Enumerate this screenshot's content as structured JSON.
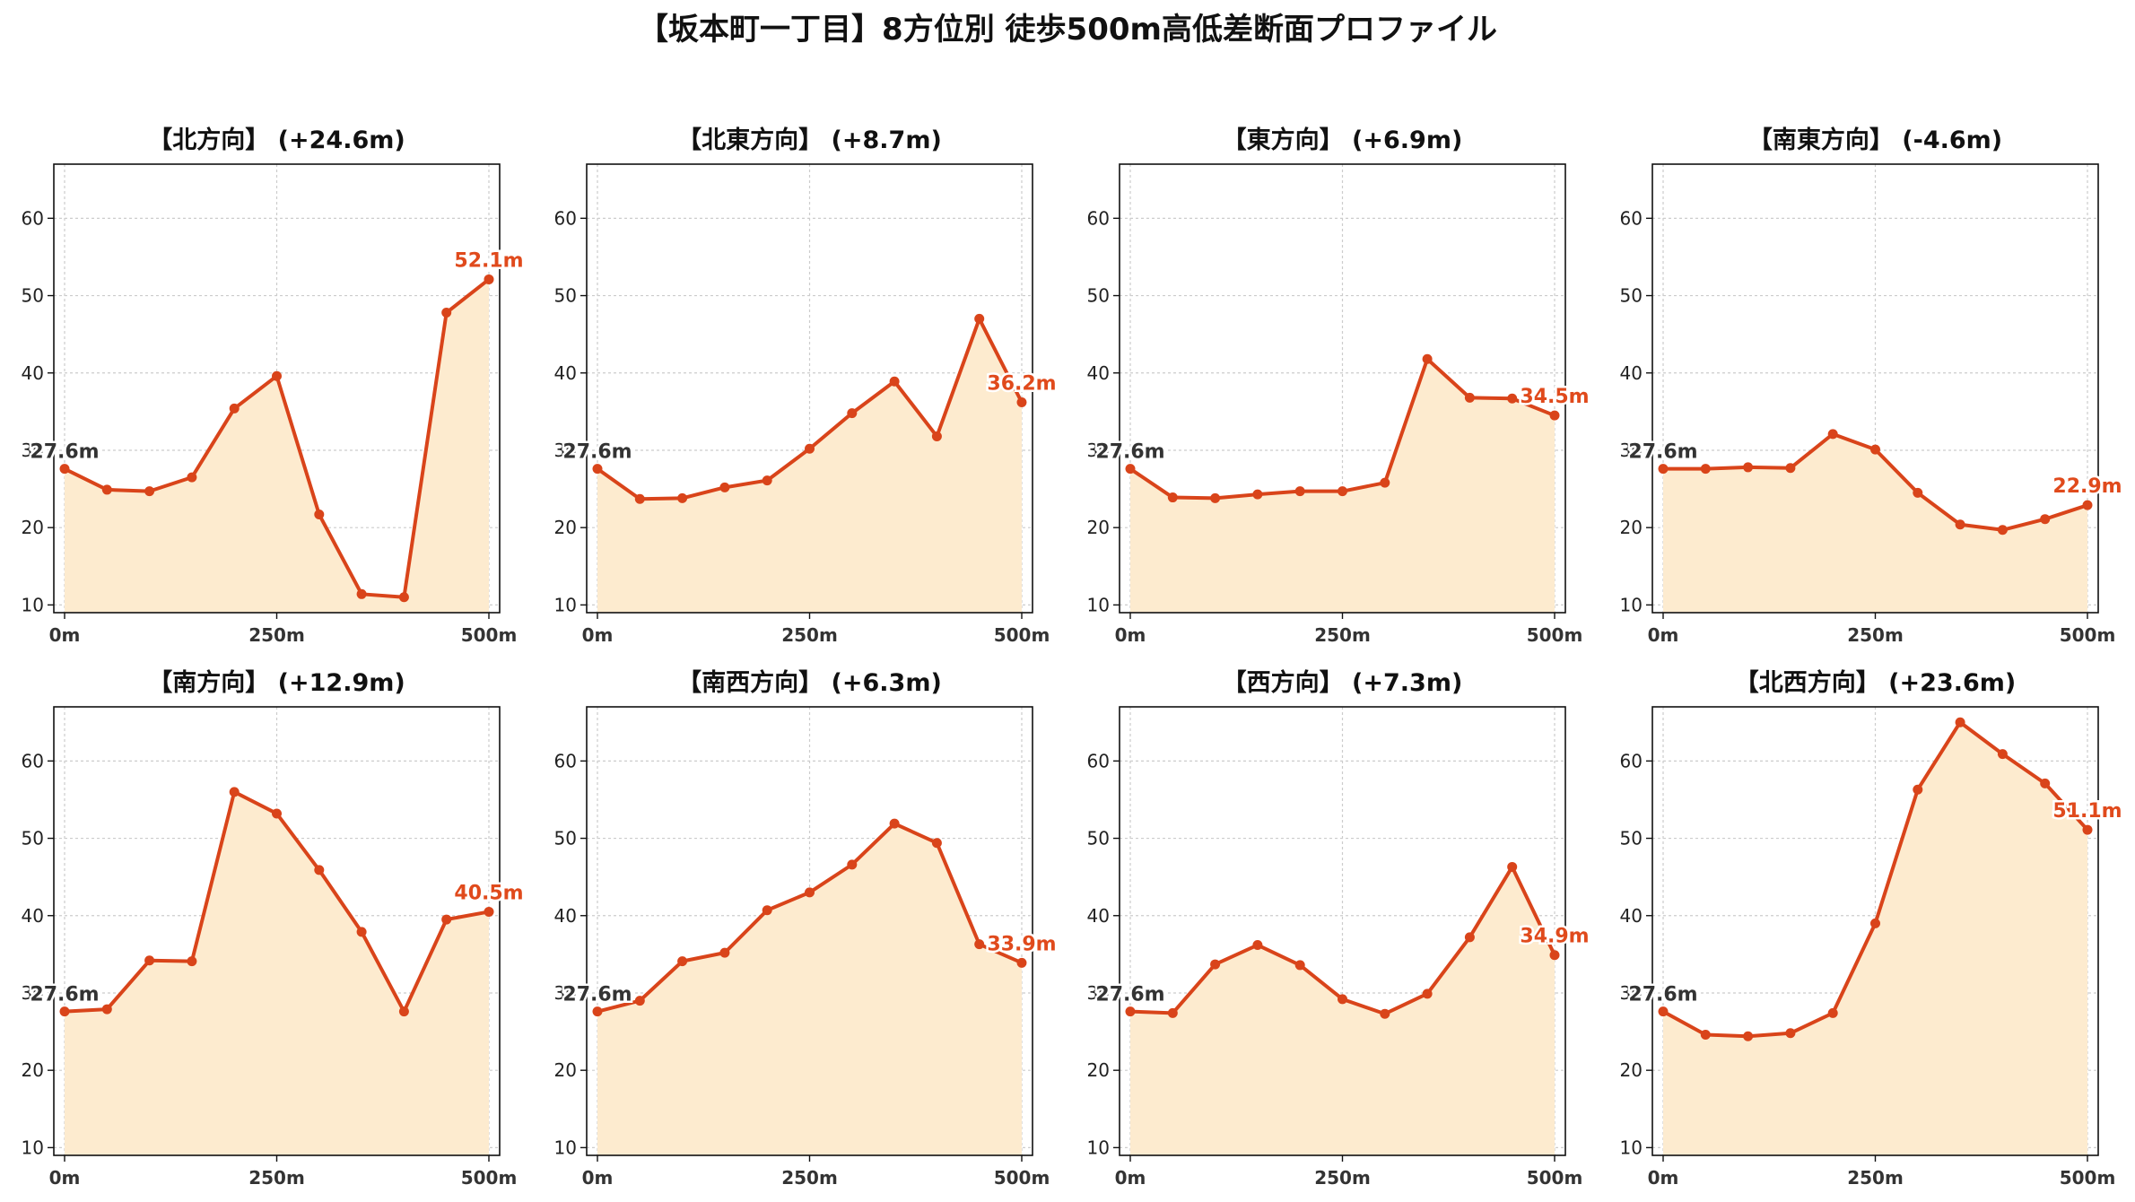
{
  "page": {
    "title": "【坂本町一丁目】8方位別 徒歩500m高低差断面プロファイル"
  },
  "colors": {
    "line": "#d9441a",
    "fill": "#fdebcf",
    "grid": "#cccccc",
    "end_label": "#e04a1c",
    "start_label": "#333333"
  },
  "chart_data": [
    {
      "type": "area",
      "title": "【北方向】 (+24.6m)",
      "x": [
        0,
        50,
        100,
        150,
        200,
        250,
        300,
        350,
        400,
        450,
        500
      ],
      "y": [
        27.6,
        24.9,
        24.7,
        26.5,
        35.4,
        39.6,
        21.7,
        11.4,
        11.0,
        47.8,
        52.1
      ],
      "x_tick_labels": [
        "0m",
        "250m",
        "500m"
      ],
      "y_ticks": [
        10,
        20,
        30,
        40,
        50,
        60
      ],
      "ylim": [
        9,
        67
      ],
      "start_label": "27.6m",
      "end_label": "52.1m",
      "grid": true
    },
    {
      "type": "area",
      "title": "【北東方向】 (+8.7m)",
      "x": [
        0,
        50,
        100,
        150,
        200,
        250,
        300,
        350,
        400,
        450,
        500
      ],
      "y": [
        27.6,
        23.7,
        23.8,
        25.2,
        26.1,
        30.2,
        34.8,
        38.9,
        31.8,
        47.0,
        36.2
      ],
      "x_tick_labels": [
        "0m",
        "250m",
        "500m"
      ],
      "y_ticks": [
        10,
        20,
        30,
        40,
        50,
        60
      ],
      "ylim": [
        9,
        67
      ],
      "start_label": "27.6m",
      "end_label": "36.2m",
      "grid": true
    },
    {
      "type": "area",
      "title": "【東方向】 (+6.9m)",
      "x": [
        0,
        50,
        100,
        150,
        200,
        250,
        300,
        350,
        400,
        450,
        500
      ],
      "y": [
        27.6,
        23.9,
        23.8,
        24.3,
        24.7,
        24.7,
        25.8,
        41.8,
        36.8,
        36.7,
        34.5
      ],
      "x_tick_labels": [
        "0m",
        "250m",
        "500m"
      ],
      "y_ticks": [
        10,
        20,
        30,
        40,
        50,
        60
      ],
      "ylim": [
        9,
        67
      ],
      "start_label": "27.6m",
      "end_label": "34.5m",
      "grid": true
    },
    {
      "type": "area",
      "title": "【南東方向】 (-4.6m)",
      "x": [
        0,
        50,
        100,
        150,
        200,
        250,
        300,
        350,
        400,
        450,
        500
      ],
      "y": [
        27.6,
        27.6,
        27.8,
        27.7,
        32.1,
        30.1,
        24.5,
        20.4,
        19.7,
        21.1,
        22.9
      ],
      "x_tick_labels": [
        "0m",
        "250m",
        "500m"
      ],
      "y_ticks": [
        10,
        20,
        30,
        40,
        50,
        60
      ],
      "ylim": [
        9,
        67
      ],
      "start_label": "27.6m",
      "end_label": "22.9m",
      "grid": true
    },
    {
      "type": "area",
      "title": "【南方向】 (+12.9m)",
      "x": [
        0,
        50,
        100,
        150,
        200,
        250,
        300,
        350,
        400,
        450,
        500
      ],
      "y": [
        27.6,
        27.9,
        34.2,
        34.1,
        56.0,
        53.2,
        45.9,
        37.9,
        27.6,
        39.5,
        40.5
      ],
      "x_tick_labels": [
        "0m",
        "250m",
        "500m"
      ],
      "y_ticks": [
        10,
        20,
        30,
        40,
        50,
        60
      ],
      "ylim": [
        9,
        67
      ],
      "start_label": "27.6m",
      "end_label": "40.5m",
      "grid": true
    },
    {
      "type": "area",
      "title": "【南西方向】 (+6.3m)",
      "x": [
        0,
        50,
        100,
        150,
        200,
        250,
        300,
        350,
        400,
        450,
        500
      ],
      "y": [
        27.6,
        29.0,
        34.1,
        35.2,
        40.7,
        43.0,
        46.6,
        51.9,
        49.4,
        36.3,
        33.9
      ],
      "x_tick_labels": [
        "0m",
        "250m",
        "500m"
      ],
      "y_ticks": [
        10,
        20,
        30,
        40,
        50,
        60
      ],
      "ylim": [
        9,
        67
      ],
      "start_label": "27.6m",
      "end_label": "33.9m",
      "grid": true
    },
    {
      "type": "area",
      "title": "【西方向】 (+7.3m)",
      "x": [
        0,
        50,
        100,
        150,
        200,
        250,
        300,
        350,
        400,
        450,
        500
      ],
      "y": [
        27.6,
        27.4,
        33.7,
        36.2,
        33.6,
        29.2,
        27.3,
        29.9,
        37.2,
        46.3,
        34.9
      ],
      "x_tick_labels": [
        "0m",
        "250m",
        "500m"
      ],
      "y_ticks": [
        10,
        20,
        30,
        40,
        50,
        60
      ],
      "ylim": [
        9,
        67
      ],
      "start_label": "27.6m",
      "end_label": "34.9m",
      "grid": true
    },
    {
      "type": "area",
      "title": "【北西方向】 (+23.6m)",
      "x": [
        0,
        50,
        100,
        150,
        200,
        250,
        300,
        350,
        400,
        450,
        500
      ],
      "y": [
        27.6,
        24.6,
        24.4,
        24.8,
        27.4,
        39.0,
        56.3,
        65.0,
        60.9,
        57.1,
        51.1
      ],
      "x_tick_labels": [
        "0m",
        "250m",
        "500m"
      ],
      "y_ticks": [
        10,
        20,
        30,
        40,
        50,
        60
      ],
      "ylim": [
        9,
        67
      ],
      "start_label": "27.6m",
      "end_label": "51.1m",
      "grid": true
    }
  ]
}
